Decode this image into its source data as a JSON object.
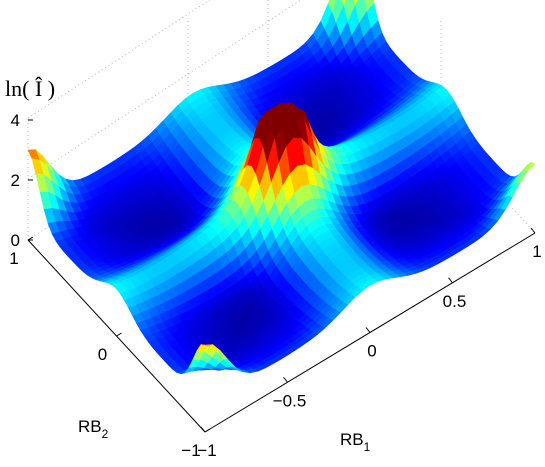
{
  "chart_data": {
    "type": "surface",
    "title": "",
    "xlabel": {
      "main": "RB",
      "sub": "1"
    },
    "ylabel": {
      "main": "RB",
      "sub": "2"
    },
    "zlabel": {
      "prefix": "ln(",
      "symbol": "Î",
      "suffix": ")"
    },
    "xlim": [
      -1,
      1
    ],
    "ylim": [
      -1,
      1
    ],
    "zlim": [
      0,
      4
    ],
    "x_ticks": [
      "-1",
      "-0.5",
      "0",
      "0.5",
      "1"
    ],
    "y_ticks": [
      "-1",
      "0",
      "1"
    ],
    "z_ticks": [
      "0",
      "2",
      "4"
    ],
    "colormap": "jet",
    "grid": true,
    "surface_samples": [
      {
        "rb1": -1,
        "rb2": -1,
        "z": 3.2
      },
      {
        "rb1": -1,
        "rb2": 1,
        "z": 3.3
      },
      {
        "rb1": 1,
        "rb2": 1,
        "z": 4.0
      },
      {
        "rb1": 1,
        "rb2": -1,
        "z": 2.6
      },
      {
        "rb1": 0,
        "rb2": 0,
        "z": 2.5
      },
      {
        "rb1": -1,
        "rb2": 0,
        "z": 1.2
      },
      {
        "rb1": 1,
        "rb2": 0,
        "z": 1.2
      },
      {
        "rb1": 0,
        "rb2": 1,
        "z": 1.2
      },
      {
        "rb1": 0,
        "rb2": -1,
        "z": 1.3
      }
    ]
  }
}
